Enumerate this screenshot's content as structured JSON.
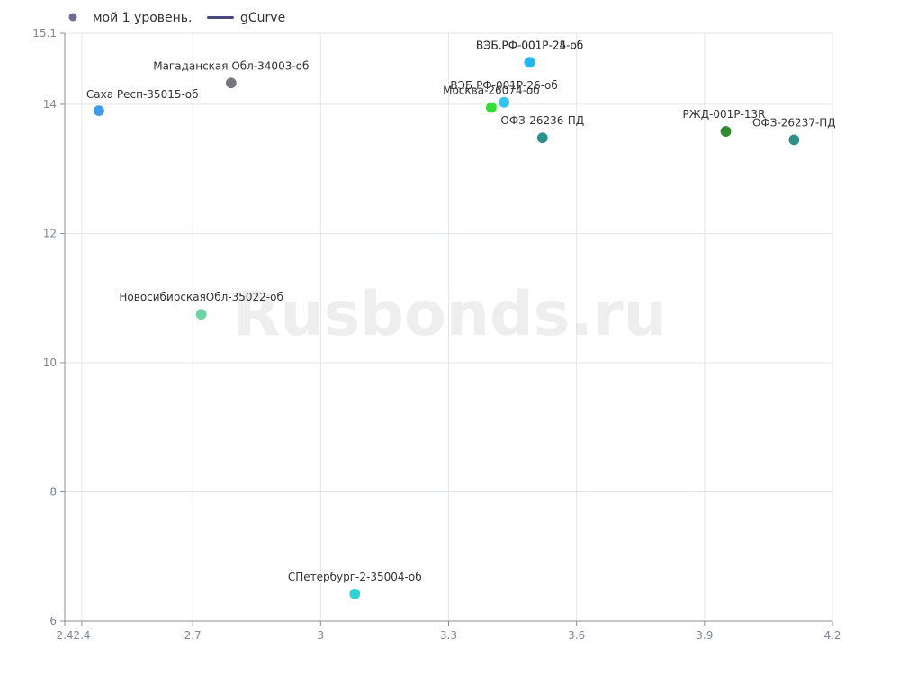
{
  "chart_data": {
    "type": "scatter",
    "watermark": "Rusbonds.ru",
    "legend": {
      "position": "top-left",
      "items": [
        {
          "name": "мой 1 уровень.",
          "marker": "circle",
          "color": "#6b6b95"
        },
        {
          "name": "gCurve",
          "marker": "line",
          "color": "#4a4880"
        }
      ]
    },
    "x_axis": {
      "min": 2.4,
      "max": 4.2,
      "ticks": [
        {
          "value": 2.4,
          "label": "2.4"
        },
        {
          "value": 2.44,
          "label": "2.4"
        },
        {
          "value": 2.7,
          "label": "2.7"
        },
        {
          "value": 3.0,
          "label": "3"
        },
        {
          "value": 3.3,
          "label": "3.3"
        },
        {
          "value": 3.6,
          "label": "3.6"
        },
        {
          "value": 3.9,
          "label": "3.9"
        },
        {
          "value": 4.2,
          "label": "4.2"
        }
      ],
      "grid": true
    },
    "y_axis": {
      "min": 6,
      "max": 15.1,
      "ticks": [
        {
          "value": 6,
          "label": "6"
        },
        {
          "value": 8,
          "label": "8"
        },
        {
          "value": 10,
          "label": "10"
        },
        {
          "value": 12,
          "label": "12"
        },
        {
          "value": 14,
          "label": "14"
        },
        {
          "value": 15.1,
          "label": "15.1"
        }
      ],
      "grid": true
    },
    "series": [
      {
        "name": "мой 1 уровень.",
        "points": [
          {
            "label": "Саха Респ-35015-об",
            "x": 2.48,
            "y": 13.9,
            "color": "#3f9be8"
          },
          {
            "label": "Магаданская Обл-34003-об",
            "x": 2.79,
            "y": 14.33,
            "color": "#76767f"
          },
          {
            "label": "НовосибирскаяОбл-35022-об",
            "x": 2.72,
            "y": 10.75,
            "color": "#6fd3a0"
          },
          {
            "label": "СПетербург-2-35004-об",
            "x": 3.08,
            "y": 6.42,
            "color": "#2ed3d9"
          },
          {
            "label": "ВЭБ.РФ-001Р-25-об",
            "x": 3.49,
            "y": 14.65,
            "color": "#23b5ef"
          },
          {
            "label": "ВЭБ.РФ-001Р-24-об",
            "x": 3.49,
            "y": 14.65,
            "color": "#23b5ef"
          },
          {
            "label": "ВЭБ.РФ-001Р-26-об",
            "x": 3.43,
            "y": 14.03,
            "color": "#33c6f0"
          },
          {
            "label": "Москва-26074-об",
            "x": 3.4,
            "y": 13.95,
            "color": "#33dd33"
          },
          {
            "label": "ОФЗ-26236-ПД",
            "x": 3.52,
            "y": 13.48,
            "color": "#2f8f8a"
          },
          {
            "label": "РЖД-001Р-13R",
            "x": 3.95,
            "y": 13.58,
            "color": "#2e8b2e"
          },
          {
            "label": "ОФЗ-26237-ПД",
            "x": 4.11,
            "y": 13.45,
            "color": "#2f8f8a"
          }
        ]
      }
    ]
  }
}
